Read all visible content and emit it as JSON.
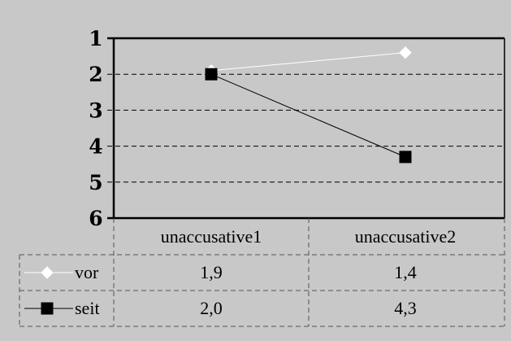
{
  "chart_data": {
    "type": "line",
    "categories": [
      "unaccusative1",
      "unaccusative2"
    ],
    "series": [
      {
        "name": "vor",
        "values": [
          1.9,
          1.4
        ],
        "marker": "diamond",
        "color": "#ffffff"
      },
      {
        "name": "seit",
        "values": [
          2.0,
          4.3
        ],
        "marker": "square",
        "color": "#000000"
      }
    ],
    "table_values": [
      [
        "1,9",
        "1,4"
      ],
      [
        "2,0",
        "4,3"
      ]
    ],
    "y_ticks": [
      "1",
      "2",
      "3",
      "4",
      "5",
      "6"
    ],
    "ylim": [
      1,
      6
    ],
    "y_reversed": true,
    "grid": true,
    "title": "",
    "xlabel": "",
    "ylabel": "",
    "plot_background": "#c8c8c8"
  }
}
